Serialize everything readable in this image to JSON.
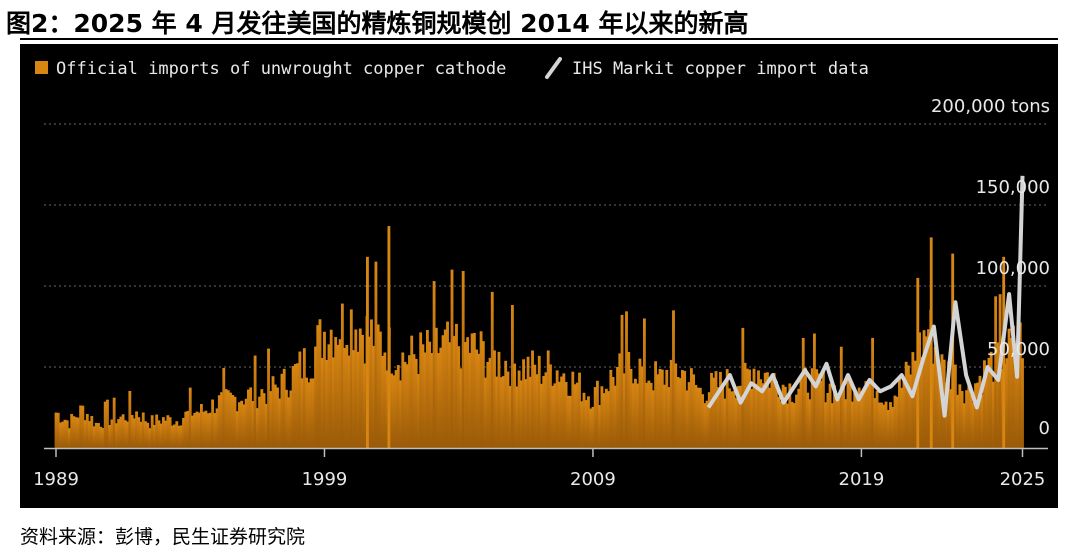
{
  "figure": {
    "title": "图2：2025 年 4 月发往美国的精炼铜规模创 2014 年以来的新高",
    "source": "资料来源：彭博，民生证券研究院"
  },
  "colors": {
    "background": "#000000",
    "official": "#c8780c",
    "ihs": "#d4d4d4",
    "grid": "#6a6a6a",
    "text": "#e8e8e8"
  },
  "chart_data": {
    "type": "area",
    "x_unit": "year",
    "xlim": [
      1989.0,
      2025.5
    ],
    "ylim": [
      0,
      200000
    ],
    "y_unit_label": "200,000 tons",
    "y_ticks": [
      {
        "value": 200000,
        "label": "200,000 tons"
      },
      {
        "value": 150000,
        "label": "150,000"
      },
      {
        "value": 100000,
        "label": "100,000"
      },
      {
        "value": 50000,
        "label": "50,000"
      },
      {
        "value": 0,
        "label": "0"
      }
    ],
    "x_ticks": [
      {
        "value": 1989,
        "label": "1989"
      },
      {
        "value": 1999,
        "label": "1999"
      },
      {
        "value": 2009,
        "label": "2009"
      },
      {
        "value": 2019,
        "label": "2019"
      },
      {
        "value": 2025,
        "label": "2025"
      }
    ],
    "grid": true,
    "legend_position": "top-left",
    "series": [
      {
        "name": "Official imports of unwrought copper cathode",
        "style": "bar-area",
        "x": [
          1989.0,
          1989.5,
          1990.0,
          1990.5,
          1991.0,
          1991.5,
          1992.0,
          1992.5,
          1993.0,
          1993.5,
          1994.0,
          1994.5,
          1995.0,
          1995.5,
          1996.0,
          1996.5,
          1997.0,
          1997.5,
          1998.0,
          1998.5,
          1999.0,
          1999.5,
          2000.0,
          2000.5,
          2001.0,
          2001.5,
          2002.0,
          2002.5,
          2003.0,
          2003.5,
          2004.0,
          2004.5,
          2005.0,
          2005.5,
          2006.0,
          2006.5,
          2007.0,
          2007.5,
          2008.0,
          2008.5,
          2009.0,
          2009.5,
          2010.0,
          2010.5,
          2011.0,
          2011.5,
          2012.0,
          2012.5,
          2013.0,
          2013.5,
          2014.0,
          2014.5,
          2015.0,
          2015.5,
          2016.0,
          2016.5,
          2017.0,
          2017.5,
          2018.0,
          2018.5,
          2019.0,
          2019.5,
          2020.0,
          2020.5,
          2021.0,
          2021.5,
          2022.0,
          2022.5,
          2023.0,
          2023.5,
          2024.0,
          2024.5,
          2025.0
        ],
        "values": [
          22000,
          16000,
          24000,
          15000,
          18000,
          19000,
          22000,
          16000,
          18000,
          17000,
          22000,
          23000,
          28000,
          30000,
          32000,
          34000,
          36000,
          40000,
          48000,
          56000,
          72000,
          75000,
          80000,
          72000,
          68000,
          60000,
          55000,
          58000,
          60000,
          63000,
          65000,
          62000,
          58000,
          54000,
          52000,
          50000,
          48000,
          50000,
          45000,
          38000,
          32000,
          40000,
          48000,
          52000,
          46000,
          42000,
          50000,
          45000,
          35000,
          38000,
          40000,
          42000,
          50000,
          45000,
          40000,
          36000,
          42000,
          40000,
          36000,
          38000,
          42000,
          40000,
          30000,
          38000,
          55000,
          75000,
          50000,
          45000,
          35000,
          45000,
          55000,
          60000,
          68000
        ]
      },
      {
        "name": "IHS Markit copper import data",
        "style": "line",
        "x": [
          2013.3,
          2013.7,
          2014.1,
          2014.5,
          2014.9,
          2015.3,
          2015.7,
          2016.1,
          2016.5,
          2016.9,
          2017.3,
          2017.7,
          2018.1,
          2018.5,
          2018.9,
          2019.3,
          2019.7,
          2020.1,
          2020.5,
          2020.9,
          2021.3,
          2021.7,
          2022.1,
          2022.5,
          2022.9,
          2023.3,
          2023.7,
          2024.1,
          2024.5,
          2024.8,
          2025.0
        ],
        "values": [
          25000,
          35000,
          45000,
          28000,
          40000,
          35000,
          45000,
          28000,
          38000,
          48000,
          38000,
          52000,
          30000,
          45000,
          30000,
          42000,
          35000,
          38000,
          45000,
          32000,
          55000,
          75000,
          20000,
          90000,
          45000,
          25000,
          50000,
          42000,
          95000,
          44000,
          168000
        ]
      }
    ]
  }
}
